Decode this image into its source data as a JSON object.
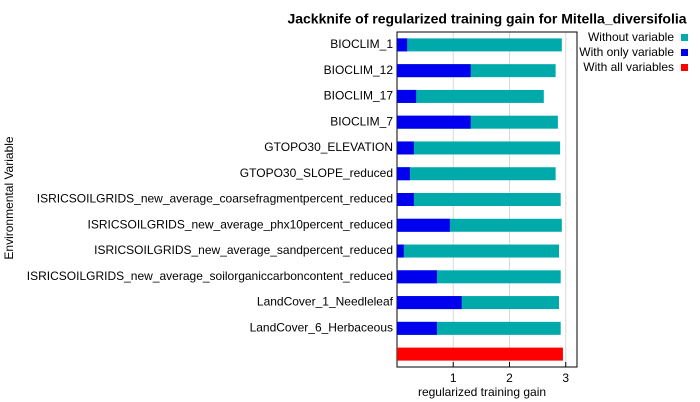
{
  "chart_data": {
    "type": "hbar",
    "title": "Jackknife of regularized training gain for Mitella_diversifolia",
    "x_label": "regularized training gain",
    "y_label": "Environmental Variable",
    "categories": [
      "BIOCLIM_1",
      "BIOCLIM_12",
      "BIOCLIM_17",
      "BIOCLIM_7",
      "GTOPO30_ELEVATION",
      "GTOPO30_SLOPE_reduced",
      "ISRICSOILGRIDS_new_average_coarsefragmentpercent_reduced",
      "ISRICSOILGRIDS_new_average_phx10percent_reduced",
      "ISRICSOILGRIDS_new_average_sandpercent_reduced",
      "ISRICSOILGRIDS_new_average_soilorganiccarboncontent_reduced",
      "LandCover_1_Needleleaf",
      "LandCover_6_Herbaceous",
      null
    ],
    "series": [
      {
        "name": "Without variable",
        "color": "#00aaaa",
        "values": [
          2.93,
          2.82,
          2.61,
          2.86,
          2.9,
          2.82,
          2.91,
          2.93,
          2.88,
          2.91,
          2.88,
          2.91,
          null
        ]
      },
      {
        "name": "With only variable",
        "color": "#0000ee",
        "values": [
          0.18,
          1.31,
          0.34,
          1.31,
          0.3,
          0.23,
          0.3,
          0.94,
          0.12,
          0.71,
          1.15,
          0.71,
          null
        ]
      },
      {
        "name": "With all variables",
        "color": "#ff0000",
        "values": [
          null,
          null,
          null,
          null,
          null,
          null,
          null,
          null,
          null,
          null,
          null,
          null,
          2.95
        ]
      }
    ],
    "xlim": [
      0,
      3.2
    ],
    "xticks": [
      1,
      2,
      3
    ],
    "grid": true,
    "legend": "top-right"
  }
}
